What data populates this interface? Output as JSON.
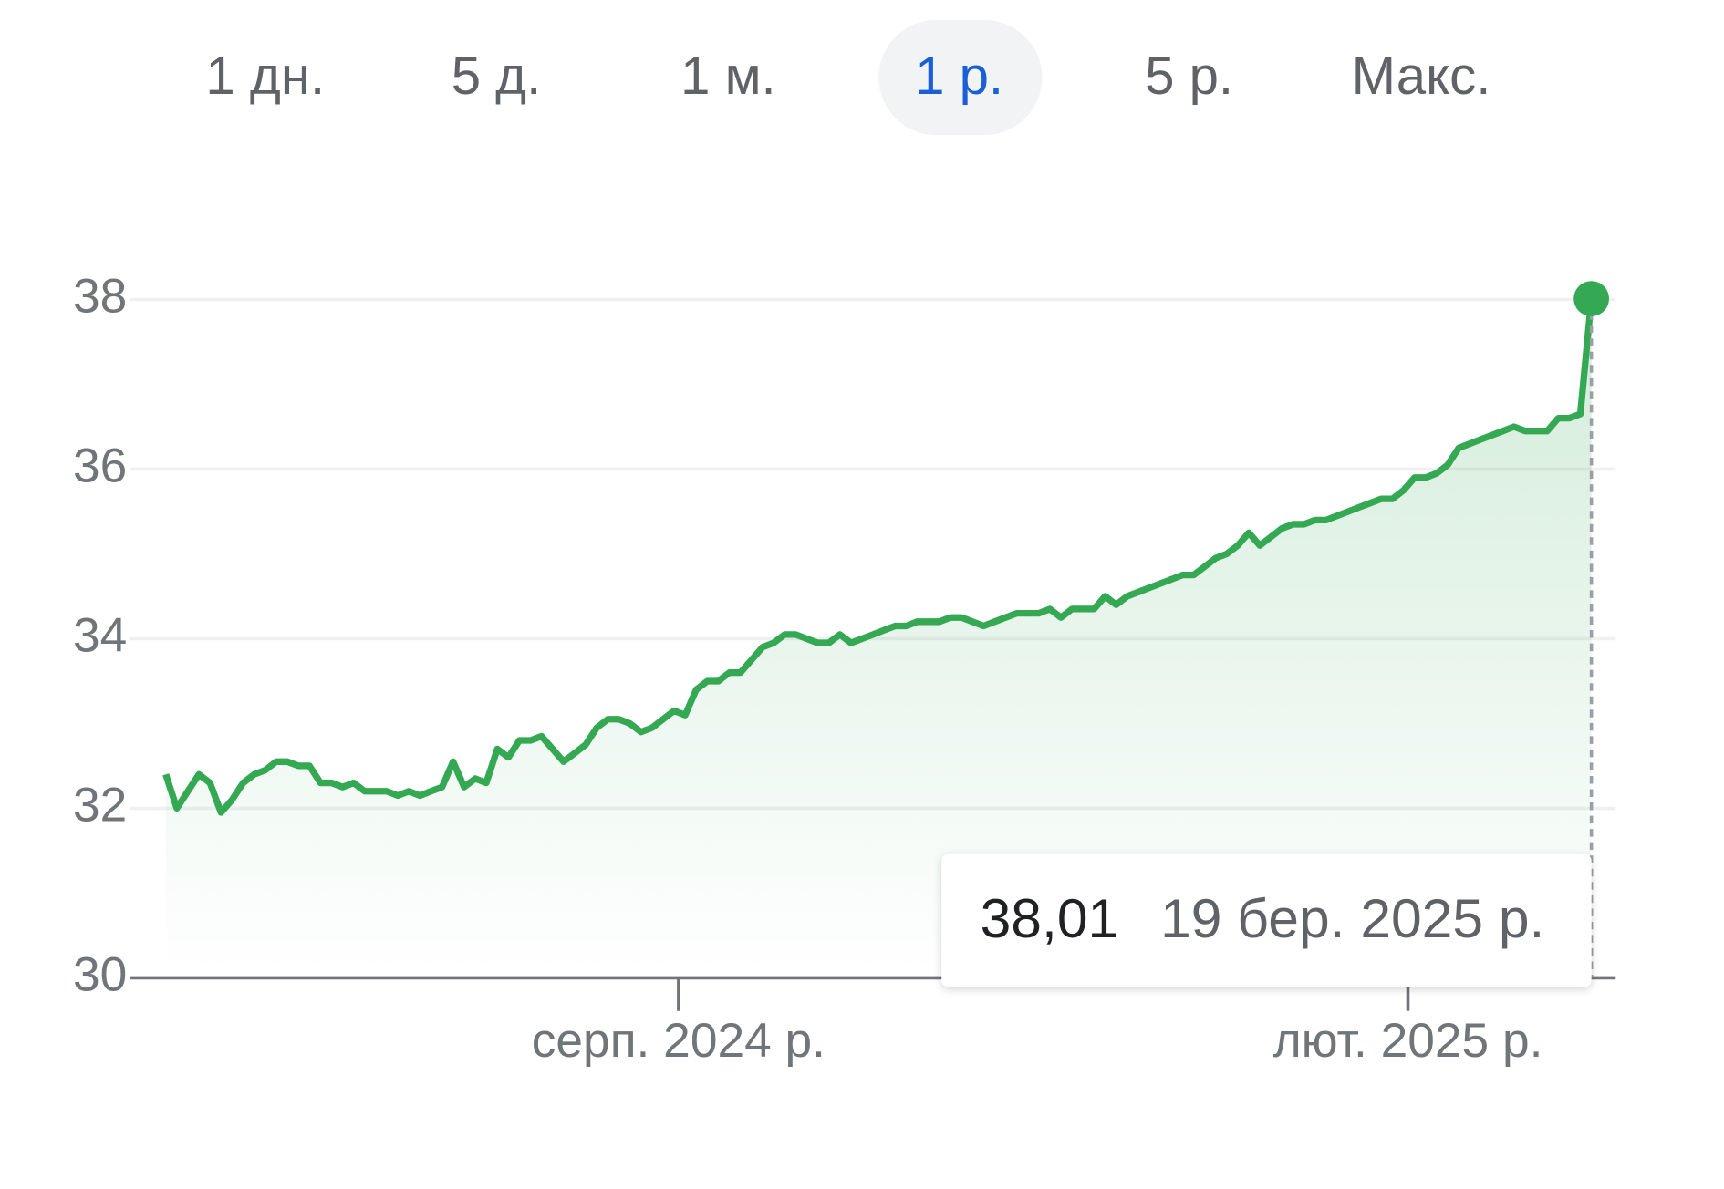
{
  "tabs": [
    "1 дн.",
    "5 д.",
    "1 м.",
    "1 р.",
    "5 р.",
    "Макс."
  ],
  "chart_data": {
    "type": "line",
    "color": "#34a853",
    "values": [
      32.4,
      32.0,
      32.2,
      32.4,
      32.3,
      31.95,
      32.1,
      32.3,
      32.4,
      32.45,
      32.55,
      32.55,
      32.5,
      32.5,
      32.3,
      32.3,
      32.25,
      32.3,
      32.2,
      32.2,
      32.2,
      32.15,
      32.2,
      32.15,
      32.2,
      32.25,
      32.55,
      32.25,
      32.35,
      32.3,
      32.7,
      32.6,
      32.8,
      32.8,
      32.85,
      32.7,
      32.55,
      32.65,
      32.75,
      32.95,
      33.05,
      33.05,
      33.0,
      32.9,
      32.95,
      33.05,
      33.15,
      33.1,
      33.4,
      33.5,
      33.5,
      33.6,
      33.6,
      33.75,
      33.9,
      33.95,
      34.05,
      34.05,
      34.0,
      33.95,
      33.95,
      34.05,
      33.95,
      34.0,
      34.05,
      34.1,
      34.15,
      34.15,
      34.2,
      34.2,
      34.2,
      34.25,
      34.25,
      34.2,
      34.15,
      34.2,
      34.25,
      34.3,
      34.3,
      34.3,
      34.35,
      34.25,
      34.35,
      34.35,
      34.35,
      34.5,
      34.4,
      34.5,
      34.55,
      34.6,
      34.65,
      34.7,
      34.75,
      34.75,
      34.85,
      34.95,
      35.0,
      35.1,
      35.25,
      35.1,
      35.2,
      35.3,
      35.35,
      35.35,
      35.4,
      35.4,
      35.45,
      35.5,
      35.55,
      35.6,
      35.65,
      35.65,
      35.75,
      35.9,
      35.9,
      35.95,
      36.05,
      36.25,
      36.3,
      36.35,
      36.4,
      36.45,
      36.5,
      36.45,
      36.45,
      36.45,
      36.6,
      36.6,
      36.65,
      38.01
    ],
    "xlim": [
      0,
      129
    ],
    "xticks": [
      {
        "value": 46.4,
        "label": "серп. 2024 р."
      },
      {
        "value": 112.4,
        "label": "лют. 2025 р."
      }
    ],
    "ylim": [
      30,
      38
    ],
    "yticks": [
      30,
      32,
      34,
      36,
      38
    ],
    "grid": true,
    "tooltip": {
      "label": "38,01",
      "date": "19 бер. 2025 р."
    }
  }
}
